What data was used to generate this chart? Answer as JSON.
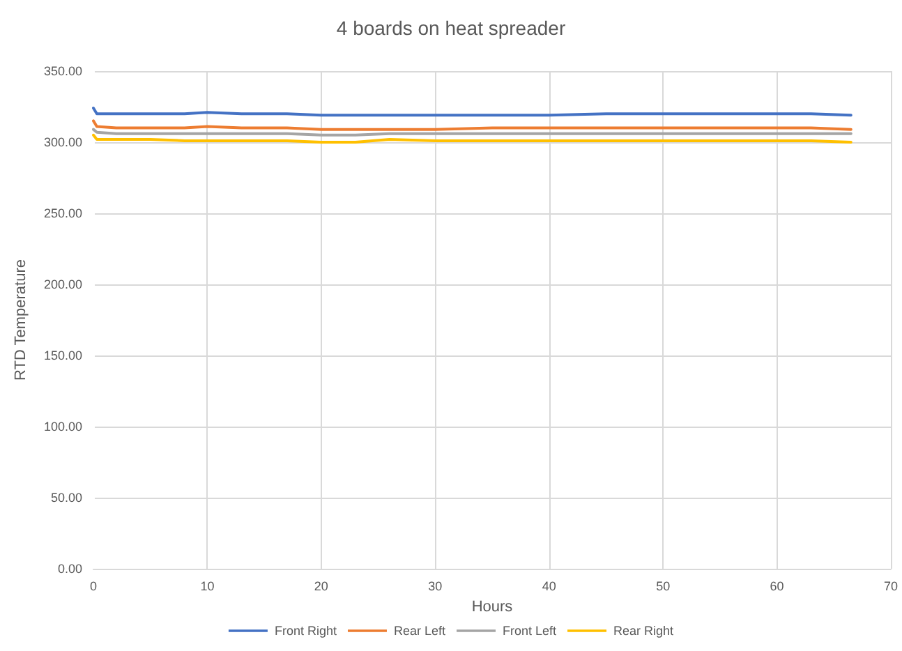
{
  "chart_data": {
    "type": "line",
    "title": "4 boards on heat spreader",
    "xlabel": "Hours",
    "ylabel": "RTD Temperature",
    "x": [
      0,
      0.3,
      2,
      5,
      8,
      10,
      13,
      17,
      20,
      23,
      26,
      30,
      35,
      40,
      45,
      50,
      55,
      60,
      63,
      66.5
    ],
    "series": [
      {
        "name": "Front Right",
        "color": "#4472c4",
        "values": [
          324,
          320,
          320,
          320,
          320,
          321,
          320,
          320,
          319,
          319,
          319,
          319,
          319,
          319,
          320,
          320,
          320,
          320,
          320,
          319
        ]
      },
      {
        "name": "Rear Left",
        "color": "#ed7d31",
        "values": [
          315,
          311,
          310,
          310,
          310,
          311,
          310,
          310,
          309,
          309,
          309,
          309,
          310,
          310,
          310,
          310,
          310,
          310,
          310,
          309
        ]
      },
      {
        "name": "Front Left",
        "color": "#a5a5a5",
        "values": [
          309,
          307,
          306,
          306,
          306,
          306,
          306,
          306,
          305,
          305,
          306,
          306,
          306,
          306,
          306,
          306,
          306,
          306,
          306,
          306
        ]
      },
      {
        "name": "Rear Right",
        "color": "#ffc000",
        "values": [
          305,
          302,
          302,
          302,
          301,
          301,
          301,
          301,
          300,
          300,
          302,
          301,
          301,
          301,
          301,
          301,
          301,
          301,
          301,
          300
        ]
      }
    ],
    "xlim": [
      0,
      70
    ],
    "xticks": [
      0,
      10,
      20,
      30,
      40,
      50,
      60,
      70
    ],
    "ylim": [
      0,
      350
    ],
    "yticks": [
      {
        "value": 0,
        "label": "0.00"
      },
      {
        "value": 50,
        "label": "50.00"
      },
      {
        "value": 100,
        "label": "100.00"
      },
      {
        "value": 150,
        "label": "150.00"
      },
      {
        "value": 200,
        "label": "200.00"
      },
      {
        "value": 250,
        "label": "250.00"
      },
      {
        "value": 300,
        "label": "300.00"
      },
      {
        "value": 350,
        "label": "350.00"
      }
    ],
    "grid": true,
    "legend": "bottom",
    "marker": "none",
    "line_style": "solid"
  }
}
